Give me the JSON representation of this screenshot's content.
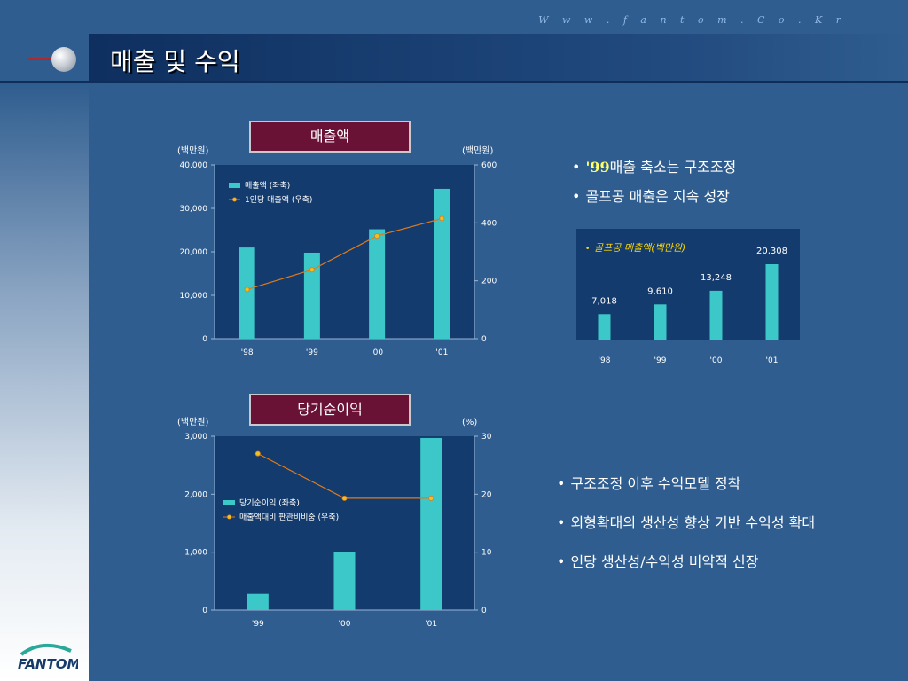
{
  "header": {
    "url": "W w w . f a n t o m . C o . K r",
    "title": "매출 및 수익"
  },
  "logo": {
    "text": "FANTOM"
  },
  "chart1": {
    "title_box": "매출액",
    "unit_left": "(백만원)",
    "unit_right": "(백만원)",
    "chart_data": {
      "type": "bar",
      "categories": [
        "'98",
        "'99",
        "'00",
        "'01"
      ],
      "series": [
        {
          "name": "매출액 (좌축)",
          "values": [
            21000,
            19800,
            25200,
            34500
          ]
        },
        {
          "name": "1인당 매출액 (우축)",
          "values": [
            170,
            238,
            355,
            415
          ]
        }
      ],
      "ylim": [
        0,
        40000
      ],
      "y2lim": [
        0,
        600
      ],
      "yticks": [
        "0",
        "10,000",
        "20,000",
        "30,000",
        "40,000"
      ],
      "y2ticks": [
        "0",
        "200",
        "400",
        "600"
      ]
    }
  },
  "chart2": {
    "title_box": "당기순이익",
    "unit_left": "(백만원)",
    "unit_right": "(%)",
    "chart_data": {
      "type": "bar",
      "categories": [
        "'99",
        "'00",
        "'01"
      ],
      "series": [
        {
          "name": "당기순이익 (좌축)",
          "values": [
            280,
            1000,
            2970
          ]
        },
        {
          "name": "매출액대비 판관비비중 (우축)",
          "values": [
            27,
            19.3,
            19.3
          ]
        }
      ],
      "ylim": [
        0,
        3000
      ],
      "y2lim": [
        0,
        30
      ],
      "yticks": [
        "0",
        "1,000",
        "2,000",
        "3,000"
      ],
      "y2ticks": [
        "0",
        "10",
        "20",
        "30"
      ]
    }
  },
  "chart3": {
    "legend": "골프공 매출액(백만원)",
    "chart_data": {
      "type": "bar",
      "categories": [
        "'98",
        "'99",
        "'00",
        "'01"
      ],
      "values": [
        7018,
        9610,
        13248,
        20308
      ],
      "labels": [
        "7,018",
        "9,610",
        "13,248",
        "20,308"
      ],
      "ylim": [
        0,
        24000
      ]
    }
  },
  "bullets_top": [
    {
      "prefix": "'99",
      "text": "매출 축소는 구조조정"
    },
    {
      "prefix": "",
      "text": "골프공 매출은 지속 성장"
    }
  ],
  "bullets_bottom": [
    {
      "text": "구조조정 이후 수익모델 정착"
    },
    {
      "text": "외형확대의 생산성 향상 기반 수익성 확대"
    },
    {
      "text": "인당 생산성/수익성 비약적 신장"
    }
  ],
  "colors": {
    "bar": "#3cc8c8",
    "line": "#e07a1a",
    "marker": "#f0c020",
    "plot_bg": "#143b6d",
    "title_box": "#6a1236"
  }
}
